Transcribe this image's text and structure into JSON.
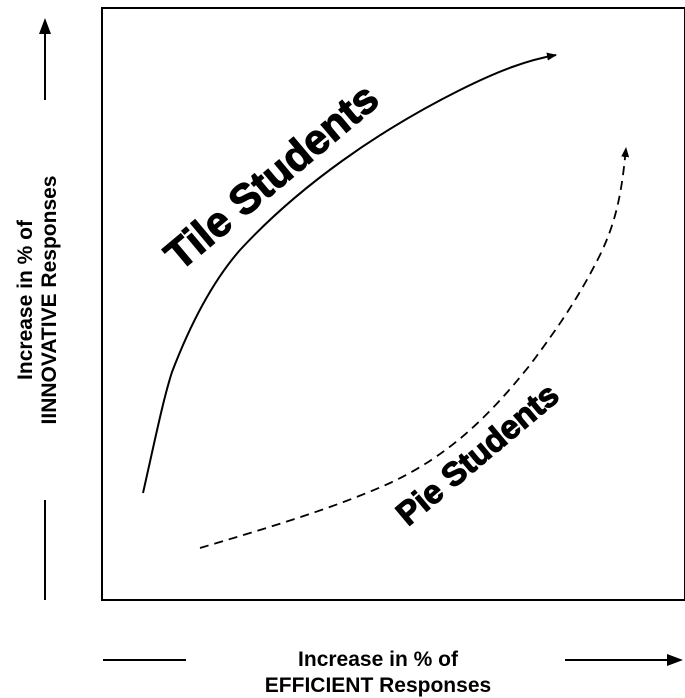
{
  "diagram": {
    "x_axis": {
      "line1": "Increase in  % of",
      "line2": "EFFICIENT Responses"
    },
    "y_axis": {
      "line1": "Increase in  % of",
      "line2": "IINNOVATIVE Responses"
    },
    "curves": {
      "tile": {
        "label": "Tile Students",
        "style": "solid"
      },
      "pie": {
        "label": "Pie Students",
        "style": "dashed"
      }
    },
    "colors": {
      "ink": "#000000",
      "background": "#ffffff"
    }
  }
}
